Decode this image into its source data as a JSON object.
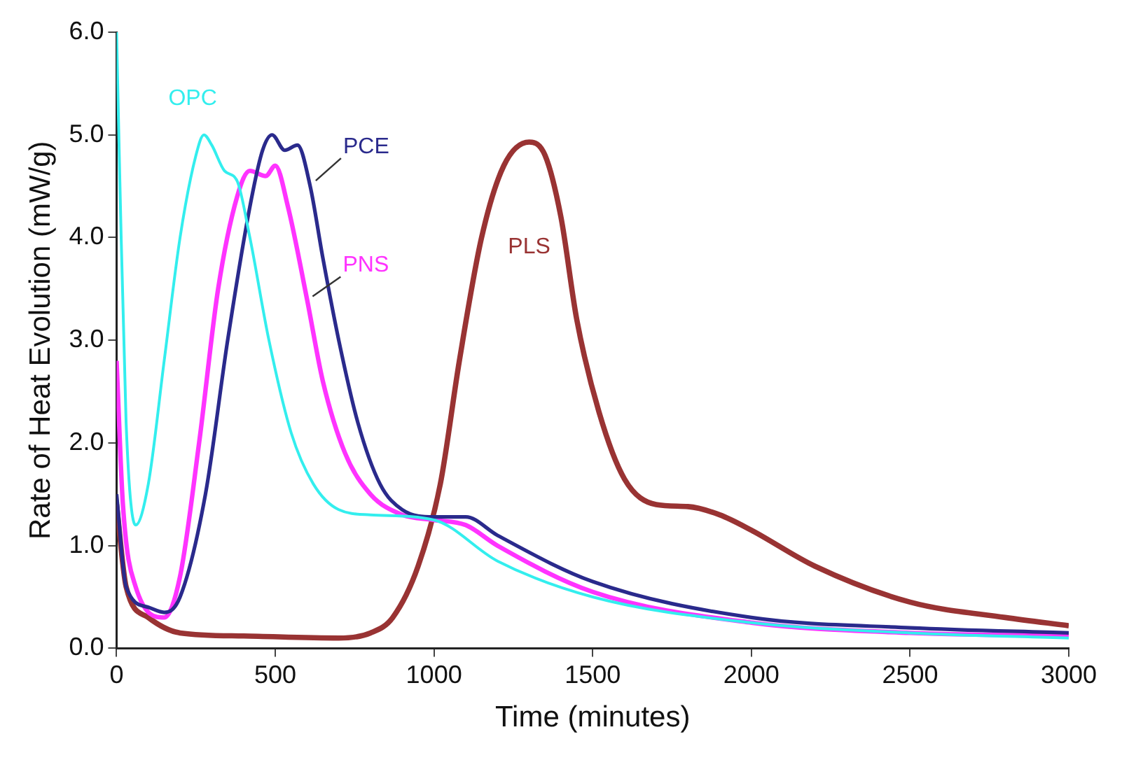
{
  "chart_data": {
    "type": "line",
    "xlabel": "Time (minutes)",
    "ylabel": "Rate of Heat Evolution (mW/g)",
    "xlim": [
      0,
      3000
    ],
    "xticks": [
      0,
      500,
      1000,
      1500,
      2000,
      2500,
      3000
    ],
    "ylim": [
      0,
      6
    ],
    "yticks": [
      {
        "value": 0,
        "label": "0.0"
      },
      {
        "value": 1,
        "label": "1.0"
      },
      {
        "value": 2,
        "label": "2.0"
      },
      {
        "value": 3,
        "label": "3.0"
      },
      {
        "value": 4,
        "label": "4.0"
      },
      {
        "value": 5,
        "label": "5.0"
      },
      {
        "value": 6,
        "label": "6.0"
      }
    ],
    "grid": false,
    "legend": false,
    "marker": "none",
    "line_style": "solid",
    "series": [
      {
        "name": "OPC",
        "color": "#33eeee",
        "x": [
          0,
          10,
          30,
          60,
          100,
          150,
          200,
          250,
          275,
          300,
          340,
          380,
          420,
          480,
          550,
          620,
          700,
          800,
          1000,
          1200,
          1500,
          2000,
          2500,
          3000
        ],
        "values": [
          6.0,
          4.6,
          2.2,
          1.2,
          1.6,
          2.8,
          4.0,
          4.8,
          5.0,
          4.9,
          4.65,
          4.55,
          4.0,
          3.0,
          2.1,
          1.6,
          1.35,
          1.3,
          1.25,
          0.85,
          0.5,
          0.25,
          0.15,
          0.1
        ]
      },
      {
        "name": "PCE",
        "color": "#2a2a8c",
        "x": [
          0,
          30,
          100,
          150,
          200,
          280,
          350,
          420,
          460,
          490,
          530,
          570,
          610,
          650,
          700,
          760,
          830,
          900,
          1000,
          1100,
          1200,
          1500,
          2000,
          2500,
          3000
        ],
        "values": [
          1.5,
          0.6,
          0.4,
          0.35,
          0.5,
          1.5,
          3.0,
          4.3,
          4.85,
          5.0,
          4.85,
          4.9,
          4.5,
          3.8,
          3.0,
          2.2,
          1.6,
          1.35,
          1.28,
          1.28,
          1.1,
          0.65,
          0.3,
          0.2,
          0.15
        ]
      },
      {
        "name": "PNS",
        "color": "#ff33ff",
        "x": [
          0,
          20,
          60,
          150,
          200,
          260,
          320,
          380,
          420,
          470,
          500,
          540,
          600,
          650,
          720,
          800,
          900,
          1000,
          1100,
          1200,
          1500,
          2000,
          2500,
          3000
        ],
        "values": [
          2.8,
          1.4,
          0.6,
          0.3,
          0.7,
          2.0,
          3.5,
          4.4,
          4.65,
          4.6,
          4.7,
          4.3,
          3.4,
          2.6,
          1.9,
          1.5,
          1.3,
          1.25,
          1.2,
          1.0,
          0.55,
          0.25,
          0.15,
          0.12
        ]
      },
      {
        "name": "PLS",
        "color": "#993333",
        "x": [
          0,
          30,
          100,
          200,
          400,
          700,
          800,
          870,
          950,
          1020,
          1080,
          1150,
          1220,
          1300,
          1350,
          1400,
          1450,
          1520,
          1600,
          1700,
          1800,
          1900,
          2000,
          2200,
          2500,
          2800,
          3000
        ],
        "values": [
          1.4,
          0.6,
          0.3,
          0.15,
          0.12,
          0.1,
          0.15,
          0.3,
          0.8,
          1.6,
          2.8,
          4.0,
          4.7,
          4.93,
          4.8,
          4.2,
          3.2,
          2.3,
          1.65,
          1.4,
          1.38,
          1.3,
          1.15,
          0.8,
          0.45,
          0.3,
          0.22
        ]
      }
    ]
  }
}
